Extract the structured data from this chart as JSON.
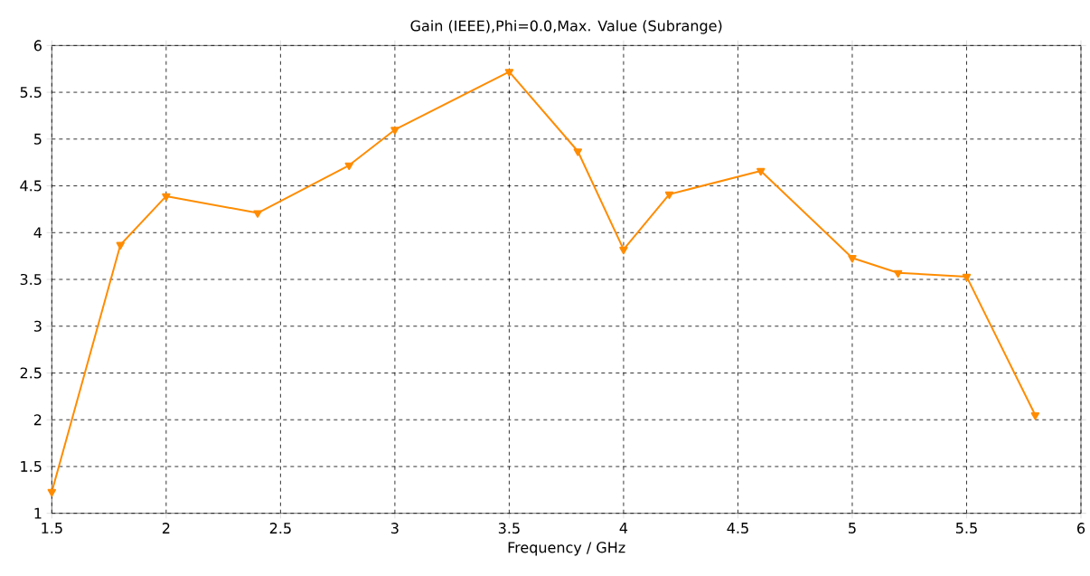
{
  "chart_data": {
    "type": "line",
    "title": "Gain (IEEE),Phi=0.0,Max. Value (Subrange)",
    "xlabel": "Frequency / GHz",
    "x": [
      1.5,
      1.8,
      2.0,
      2.4,
      2.8,
      3.0,
      3.5,
      3.8,
      4.0,
      4.2,
      4.6,
      5.0,
      5.2,
      5.5,
      5.8
    ],
    "series": [
      {
        "color": "#ff8c00",
        "values": [
          1.23,
          3.87,
          4.39,
          4.21,
          4.72,
          5.1,
          5.72,
          4.87,
          3.82,
          4.41,
          4.66,
          3.73,
          3.57,
          3.53,
          2.05
        ]
      }
    ],
    "xlim": [
      1.5,
      6
    ],
    "xticks": [
      1.5,
      2,
      2.5,
      3,
      3.5,
      4,
      4.5,
      5,
      5.5,
      6
    ],
    "ylim": [
      1,
      6
    ],
    "yticks": [
      1,
      1.5,
      2,
      2.5,
      3,
      3.5,
      4,
      4.5,
      5,
      5.5,
      6
    ],
    "grid": true,
    "marker": "triangle",
    "line_style": "solid"
  }
}
